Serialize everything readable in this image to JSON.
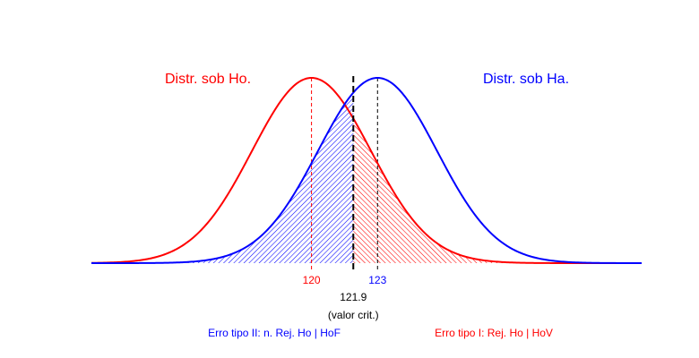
{
  "chart_data": {
    "type": "line",
    "x_range": [
      110,
      135
    ],
    "colors": {
      "ho": "#ff0000",
      "ha": "#0000ff",
      "crit": "#000000"
    },
    "series": [
      {
        "key": "ho",
        "name": "Distr. sob Ho.",
        "mean": 120,
        "sd": 2.7
      },
      {
        "key": "ha",
        "name": "Distr. sob Ha.",
        "mean": 123,
        "sd": 2.7
      }
    ],
    "critical_value": 121.9,
    "tick_labels": {
      "ho_mean": "120",
      "ha_mean": "123",
      "crit": "121.9"
    },
    "crit_caption": "(valor crit.)",
    "annotations": {
      "type2": "Erro tipo II: n. Rej. Ho | HoF",
      "type1": "Erro tipo I: Rej. Ho | HoV"
    }
  }
}
